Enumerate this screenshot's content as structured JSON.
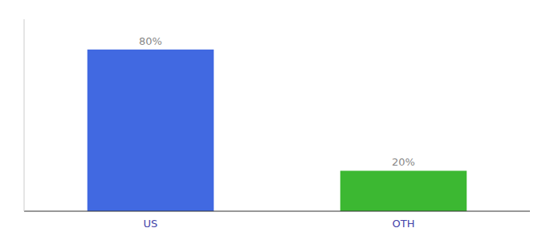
{
  "chart_data": {
    "type": "bar",
    "categories": [
      "US",
      "OTH"
    ],
    "values": [
      80,
      20
    ],
    "value_labels": [
      "80%",
      "20%"
    ],
    "colors": [
      "#4169E1",
      "#3CB832"
    ],
    "data_labels": true,
    "ylim": [
      0,
      95
    ],
    "tick_labels": "x"
  }
}
